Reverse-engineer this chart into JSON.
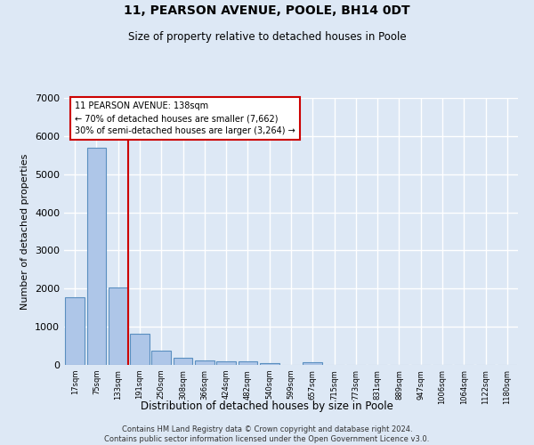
{
  "title1": "11, PEARSON AVENUE, POOLE, BH14 0DT",
  "title2": "Size of property relative to detached houses in Poole",
  "xlabel": "Distribution of detached houses by size in Poole",
  "ylabel": "Number of detached properties",
  "footer1": "Contains HM Land Registry data © Crown copyright and database right 2024.",
  "footer2": "Contains public sector information licensed under the Open Government Licence v3.0.",
  "bar_labels": [
    "17sqm",
    "75sqm",
    "133sqm",
    "191sqm",
    "250sqm",
    "308sqm",
    "366sqm",
    "424sqm",
    "482sqm",
    "540sqm",
    "599sqm",
    "657sqm",
    "715sqm",
    "773sqm",
    "831sqm",
    "889sqm",
    "947sqm",
    "1006sqm",
    "1064sqm",
    "1122sqm",
    "1180sqm"
  ],
  "bar_values": [
    1780,
    5700,
    2020,
    810,
    380,
    195,
    110,
    105,
    90,
    55,
    0,
    75,
    0,
    0,
    0,
    0,
    0,
    0,
    0,
    0,
    0
  ],
  "bar_color": "#aec6e8",
  "bar_edgecolor": "#5a8fc0",
  "property_line_index": 2,
  "property_line_color": "#cc0000",
  "annotation_line1": "11 PEARSON AVENUE: 138sqm",
  "annotation_line2": "← 70% of detached houses are smaller (7,662)",
  "annotation_line3": "30% of semi-detached houses are larger (3,264) →",
  "annotation_box_color": "#ffffff",
  "annotation_box_edgecolor": "#cc0000",
  "ylim": [
    0,
    7000
  ],
  "background_color": "#dde8f5",
  "grid_color": "#ffffff"
}
